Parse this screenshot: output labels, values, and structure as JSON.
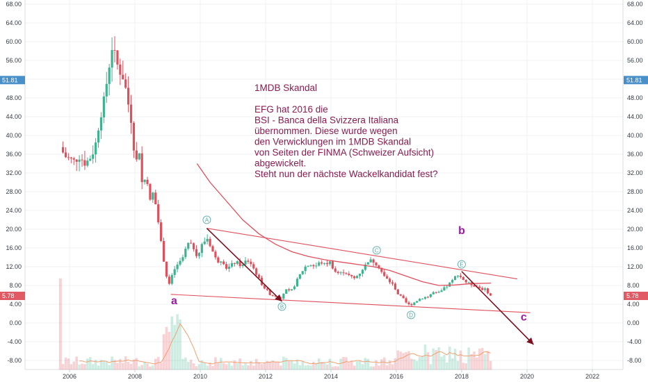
{
  "chart_data": {
    "type": "candlestick",
    "y_ticks": [
      "68.00",
      "64.00",
      "60.00",
      "56.00",
      "52.00",
      "48.00",
      "44.00",
      "40.00",
      "36.00",
      "32.00",
      "28.00",
      "24.00",
      "20.00",
      "16.00",
      "12.00",
      "8.00",
      "4.00",
      "0.00",
      "-4.00",
      "-8.00"
    ],
    "y_tick_values": [
      68,
      64,
      60,
      56,
      52,
      48,
      44,
      40,
      36,
      32,
      28,
      24,
      20,
      16,
      12,
      8,
      4,
      0,
      -4,
      -8
    ],
    "ylim": [
      -10,
      69
    ],
    "x_ticks": [
      "2006",
      "2008",
      "2010",
      "2012",
      "2014",
      "2016",
      "2018",
      "2020",
      "2022"
    ],
    "x_tick_values": [
      2006,
      2008,
      2010,
      2012,
      2014,
      2016,
      2018,
      2020,
      2022
    ],
    "xlim": [
      2005.4,
      2023.5
    ],
    "price_badges": [
      {
        "label": "51.81",
        "value": 51.81,
        "color": "#4a90c8"
      },
      {
        "label": "5.78",
        "value": 5.78,
        "color": "#e05a63"
      }
    ],
    "annotation_lines": [
      "1MDB Skandal",
      "",
      "EFG hat 2016 die",
      "BSI - Banca della Svizzera Italiana",
      "übernommen. Diese wurde wegen",
      "den Verwicklungen im 1MDB Skandal",
      "von Seiten der FINMA (Schweizer Aufsicht)",
      "abgewickelt.",
      "Steht nun der nächste Wackelkandidat fest?"
    ],
    "wave_labels": [
      {
        "text": "a",
        "x": 2009.2,
        "y": 4.0
      },
      {
        "text": "b",
        "x": 2018.0,
        "y": 19.0
      },
      {
        "text": "c",
        "x": 2019.9,
        "y": 0.5
      }
    ],
    "wave_points": [
      {
        "text": "A",
        "x": 2010.2,
        "y": 22.0
      },
      {
        "text": "B",
        "x": 2012.5,
        "y": 3.5
      },
      {
        "text": "C",
        "x": 2015.4,
        "y": 15.5
      },
      {
        "text": "D",
        "x": 2016.45,
        "y": 1.7
      },
      {
        "text": "E",
        "x": 2018.0,
        "y": 12.5
      }
    ],
    "trendlines": [
      {
        "x1": 2010.2,
        "y1": 20.2,
        "x2": 2019.7,
        "y2": 9.4
      },
      {
        "x1": 2009.1,
        "y1": 6.1,
        "x2": 2020.1,
        "y2": 2.2
      }
    ],
    "moving_average": [
      [
        2009.9,
        34
      ],
      [
        2010.3,
        30
      ],
      [
        2010.8,
        26
      ],
      [
        2011.3,
        22
      ],
      [
        2011.8,
        19
      ],
      [
        2012.3,
        16.8
      ],
      [
        2012.8,
        15.2
      ],
      [
        2013.3,
        14.2
      ],
      [
        2013.8,
        13.5
      ],
      [
        2014.3,
        13.0
      ],
      [
        2014.8,
        12.5
      ],
      [
        2015.3,
        12.0
      ],
      [
        2015.8,
        11.2
      ],
      [
        2016.3,
        10.0
      ],
      [
        2016.8,
        8.8
      ],
      [
        2017.3,
        8.0
      ],
      [
        2017.8,
        8.1
      ],
      [
        2018.3,
        8.4
      ],
      [
        2018.9,
        8.5
      ]
    ],
    "arrows": [
      {
        "x1": 2010.2,
        "y1": 20.2,
        "x2": 2012.5,
        "y2": 4.6
      },
      {
        "x1": 2018.0,
        "y1": 11.0,
        "x2": 2020.2,
        "y2": -4.6
      }
    ],
    "price_path": [
      [
        2005.8,
        37.5
      ],
      [
        2005.95,
        35.5
      ],
      [
        2006.1,
        35
      ],
      [
        2006.25,
        34.5
      ],
      [
        2006.4,
        35.5
      ],
      [
        2006.55,
        34
      ],
      [
        2006.7,
        35
      ],
      [
        2006.85,
        37
      ],
      [
        2007.0,
        43
      ],
      [
        2007.15,
        48
      ],
      [
        2007.3,
        55
      ],
      [
        2007.4,
        59.5
      ],
      [
        2007.5,
        56
      ],
      [
        2007.6,
        54
      ],
      [
        2007.75,
        52
      ],
      [
        2007.9,
        46
      ],
      [
        2008.0,
        42
      ],
      [
        2008.1,
        33
      ],
      [
        2008.2,
        38
      ],
      [
        2008.3,
        30
      ],
      [
        2008.45,
        31
      ],
      [
        2008.55,
        26
      ],
      [
        2008.65,
        28
      ],
      [
        2008.75,
        24
      ],
      [
        2008.85,
        19
      ],
      [
        2008.95,
        14
      ],
      [
        2009.05,
        10
      ],
      [
        2009.15,
        8
      ],
      [
        2009.25,
        11
      ],
      [
        2009.4,
        12.5
      ],
      [
        2009.55,
        14
      ],
      [
        2009.7,
        17
      ],
      [
        2009.85,
        16.5
      ],
      [
        2010.0,
        14
      ],
      [
        2010.15,
        17
      ],
      [
        2010.3,
        18
      ],
      [
        2010.45,
        15.5
      ],
      [
        2010.6,
        13
      ],
      [
        2010.75,
        13.5
      ],
      [
        2010.9,
        11.5
      ],
      [
        2011.05,
        12.5
      ],
      [
        2011.2,
        13
      ],
      [
        2011.35,
        12
      ],
      [
        2011.5,
        13.5
      ],
      [
        2011.65,
        12.5
      ],
      [
        2011.8,
        10.5
      ],
      [
        2011.95,
        8.5
      ],
      [
        2012.1,
        7
      ],
      [
        2012.25,
        6
      ],
      [
        2012.4,
        5.8
      ],
      [
        2012.55,
        5.5
      ],
      [
        2012.7,
        7
      ],
      [
        2012.85,
        6.5
      ],
      [
        2013.0,
        8.5
      ],
      [
        2013.15,
        10.5
      ],
      [
        2013.3,
        12
      ],
      [
        2013.45,
        12.5
      ],
      [
        2013.6,
        12
      ],
      [
        2013.75,
        13
      ],
      [
        2013.9,
        12.5
      ],
      [
        2014.05,
        13
      ],
      [
        2014.2,
        11
      ],
      [
        2014.35,
        10.5
      ],
      [
        2014.5,
        11
      ],
      [
        2014.65,
        10
      ],
      [
        2014.8,
        9.5
      ],
      [
        2014.95,
        10.5
      ],
      [
        2015.1,
        12
      ],
      [
        2015.25,
        13.5
      ],
      [
        2015.4,
        13
      ],
      [
        2015.55,
        12
      ],
      [
        2015.7,
        10
      ],
      [
        2015.85,
        9
      ],
      [
        2016.0,
        8
      ],
      [
        2016.15,
        6
      ],
      [
        2016.3,
        5
      ],
      [
        2016.45,
        3.8
      ],
      [
        2016.6,
        4.2
      ],
      [
        2016.75,
        5
      ],
      [
        2016.9,
        5.5
      ],
      [
        2017.05,
        5.6
      ],
      [
        2017.2,
        6.5
      ],
      [
        2017.35,
        6.2
      ],
      [
        2017.5,
        7
      ],
      [
        2017.65,
        8
      ],
      [
        2017.8,
        9
      ],
      [
        2017.95,
        10.5
      ],
      [
        2018.1,
        9.5
      ],
      [
        2018.25,
        8.5
      ],
      [
        2018.4,
        8.2
      ],
      [
        2018.55,
        7.8
      ],
      [
        2018.7,
        7.3
      ],
      [
        2018.85,
        7
      ],
      [
        2018.95,
        5.8
      ]
    ]
  }
}
